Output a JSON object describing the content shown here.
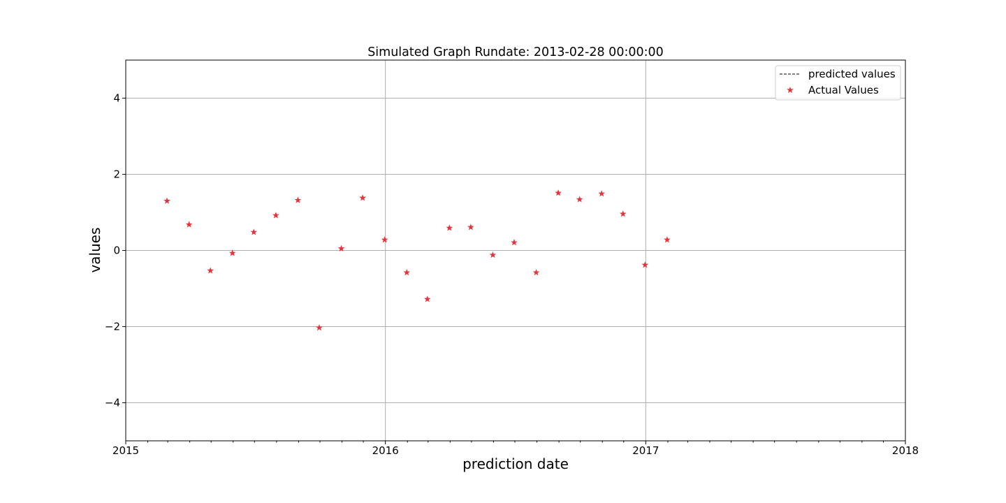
{
  "chart_data": {
    "type": "scatter",
    "title": "Simulated Graph Rundate: 2013-02-28 00:00:00",
    "xlabel": "prediction date",
    "ylabel": "values",
    "xlim": [
      "2015-01-01",
      "2018-01-01"
    ],
    "ylim": [
      -5,
      5
    ],
    "x_ticks": [
      "2015-01-01",
      "2016-01-01",
      "2017-01-01",
      "2018-01-01"
    ],
    "x_tick_labels": [
      "2015",
      "2016",
      "2017",
      "2018"
    ],
    "y_ticks": [
      -4,
      -2,
      0,
      2,
      4
    ],
    "y_tick_labels": [
      "−4",
      "−2",
      "0",
      "2",
      "4"
    ],
    "grid": true,
    "legend_position": "top-right",
    "series": [
      {
        "name": "predicted values",
        "style": "dashed-line",
        "color": "#555555",
        "x": [],
        "y": []
      },
      {
        "name": "Actual Values",
        "style": "star-marker",
        "color": "#e8333a",
        "x": [
          "2015-02-28",
          "2015-03-31",
          "2015-04-30",
          "2015-05-31",
          "2015-06-30",
          "2015-07-31",
          "2015-08-31",
          "2015-09-30",
          "2015-10-31",
          "2015-11-30",
          "2015-12-31",
          "2016-01-31",
          "2016-02-29",
          "2016-03-31",
          "2016-04-30",
          "2016-05-31",
          "2016-06-30",
          "2016-07-31",
          "2016-08-31",
          "2016-09-30",
          "2016-10-31",
          "2016-11-30",
          "2016-12-31",
          "2017-01-31"
        ],
        "y": [
          1.3,
          0.68,
          -0.53,
          -0.07,
          0.48,
          0.92,
          1.32,
          -2.03,
          0.05,
          1.38,
          0.28,
          -0.58,
          -1.28,
          0.59,
          0.61,
          -0.12,
          0.21,
          -0.58,
          1.51,
          1.34,
          1.49,
          0.96,
          -0.38,
          0.28
        ]
      }
    ]
  }
}
